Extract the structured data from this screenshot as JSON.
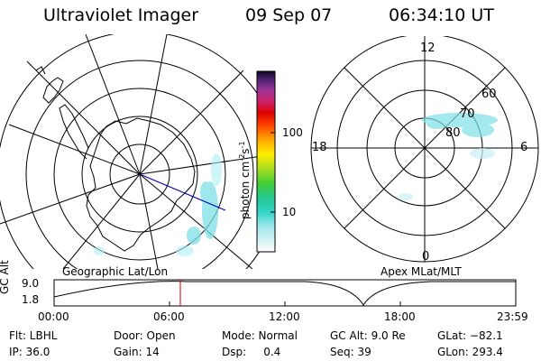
{
  "header": {
    "instrument": "Ultraviolet Imager",
    "date": "09 Sep 07",
    "time": "06:34:10 UT"
  },
  "colorbar": {
    "unit_label": "photon cm",
    "unit_exp": "-2",
    "unit_tail": "s",
    "unit_exp2": "-1",
    "ticks": [
      "100",
      "10"
    ]
  },
  "left_panel": {
    "label": "Geographic Lat/Lon"
  },
  "right_panel": {
    "label": "Apex MLat/MLT",
    "mlt_labels": {
      "top": "12",
      "left": "18",
      "right": "6",
      "bottom": "0"
    },
    "lat_labels": [
      "60",
      "70",
      "80"
    ]
  },
  "altitude_plot": {
    "ylabel": "GC Alt",
    "y_ticks": [
      "9.0",
      "1.8"
    ],
    "x_ticks": [
      "00:00",
      "06:00",
      "12:00",
      "18:00",
      "23:59"
    ]
  },
  "info": {
    "flt": "Flt: LBHL",
    "ip": "IP: 36.0",
    "door": "Door: Open",
    "gain": "Gain: 14",
    "mode": "Mode: Normal",
    "dsp": "Dsp:     0.4",
    "gcalt": "GC Alt: 9.0 Re",
    "seq": "Seq: 39",
    "glat": "GLat: −82.1",
    "glon": "GLon: 293.4"
  },
  "colors": {
    "aurora": "#7ee0e8",
    "marker": "#cc0000",
    "track": "#0000aa"
  }
}
